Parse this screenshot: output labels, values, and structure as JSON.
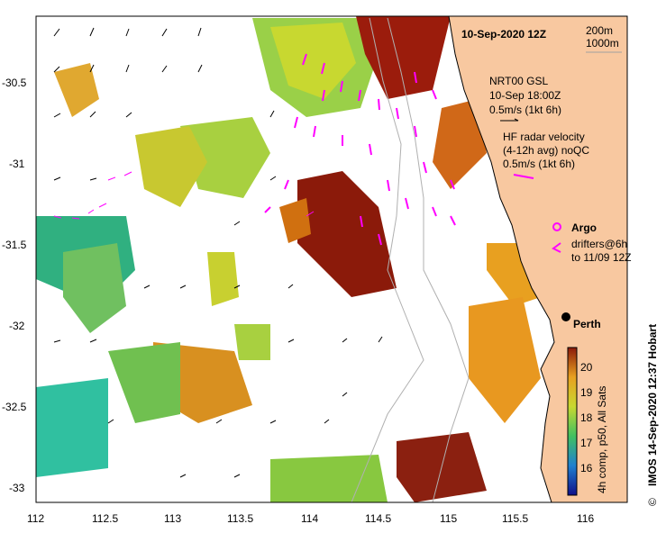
{
  "header": {
    "title": "10-Sep-2020 12Z",
    "isobath_1": "200m",
    "isobath_2": "1000m"
  },
  "legend": {
    "model_name": "NRT00 GSL",
    "model_time": "10-Sep 18:00Z",
    "model_scale": "0.5m/s (1kt 6h)",
    "radar_title": "HF radar velocity",
    "radar_sub": "(4-12h avg) noQC",
    "radar_scale": "0.5m/s (1kt 6h)",
    "argo_label": "Argo",
    "drifters_line1": "drifters@6h",
    "drifters_line2": "to 11/09 12Z"
  },
  "place": {
    "city": "Perth"
  },
  "colorbar": {
    "ticks": [
      "20",
      "19",
      "18",
      "17",
      "16"
    ],
    "caption": "4h comp, p50, All Sats"
  },
  "axes": {
    "x_ticks": [
      "112",
      "112.5",
      "113",
      "113.5",
      "114",
      "114.5",
      "115",
      "115.5",
      "116"
    ],
    "y_ticks": [
      "-30.5",
      "-31",
      "-31.5",
      "-32",
      "-32.5",
      "-33"
    ]
  },
  "credit": "IMOS 14-Sep-2020 12:37 Hobart",
  "copyright_symbol": "©",
  "colors": {
    "land": "#f8c8a0",
    "sst_warm": "#8b1a0a",
    "sst_mid": "#e8a020",
    "sst_cool": "#78d040",
    "sst_cold": "#20b090",
    "radar_vector": "#ff00ff"
  }
}
